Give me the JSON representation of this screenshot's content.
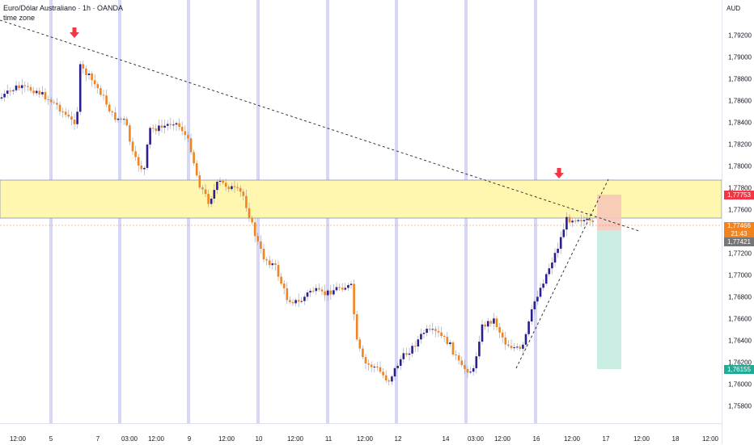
{
  "legend": {
    "title": "Euro/Dólar Australiano · 1h · OANDA",
    "subtitle": "time zone"
  },
  "price_axis": {
    "currency": "AUD",
    "ticks": [
      "1,79200",
      "1,79000",
      "1,78800",
      "1,78600",
      "1,78400",
      "1,78200",
      "1,78000",
      "1,77800",
      "1,77600",
      "1,77200",
      "1,77000",
      "1,76800",
      "1,76600",
      "1,76400",
      "1,76200",
      "1,76000",
      "1,75800"
    ]
  },
  "time_axis": {
    "ticks": [
      "12:00",
      "5",
      "7",
      "03:00",
      "12:00",
      "9",
      "12:00",
      "10",
      "12:00",
      "11",
      "12:00",
      "12",
      "14",
      "03:00",
      "12:00",
      "16",
      "12:00",
      "17",
      "12:00",
      "18",
      "12:00"
    ]
  },
  "price_tags": {
    "target": "1,77753",
    "current": "1,77466",
    "countdown": "21:43",
    "entry": "1,77421",
    "stop": "1,76155"
  },
  "colors": {
    "bull": "#2a1f8f",
    "bear": "#f2841f",
    "zone": "#fff7b0",
    "session": "#d6d6f7",
    "target_tag": "#f23645",
    "stop_tag": "#22ab94",
    "entry_tag": "#777777",
    "current_tag": "#f2841f"
  }
}
